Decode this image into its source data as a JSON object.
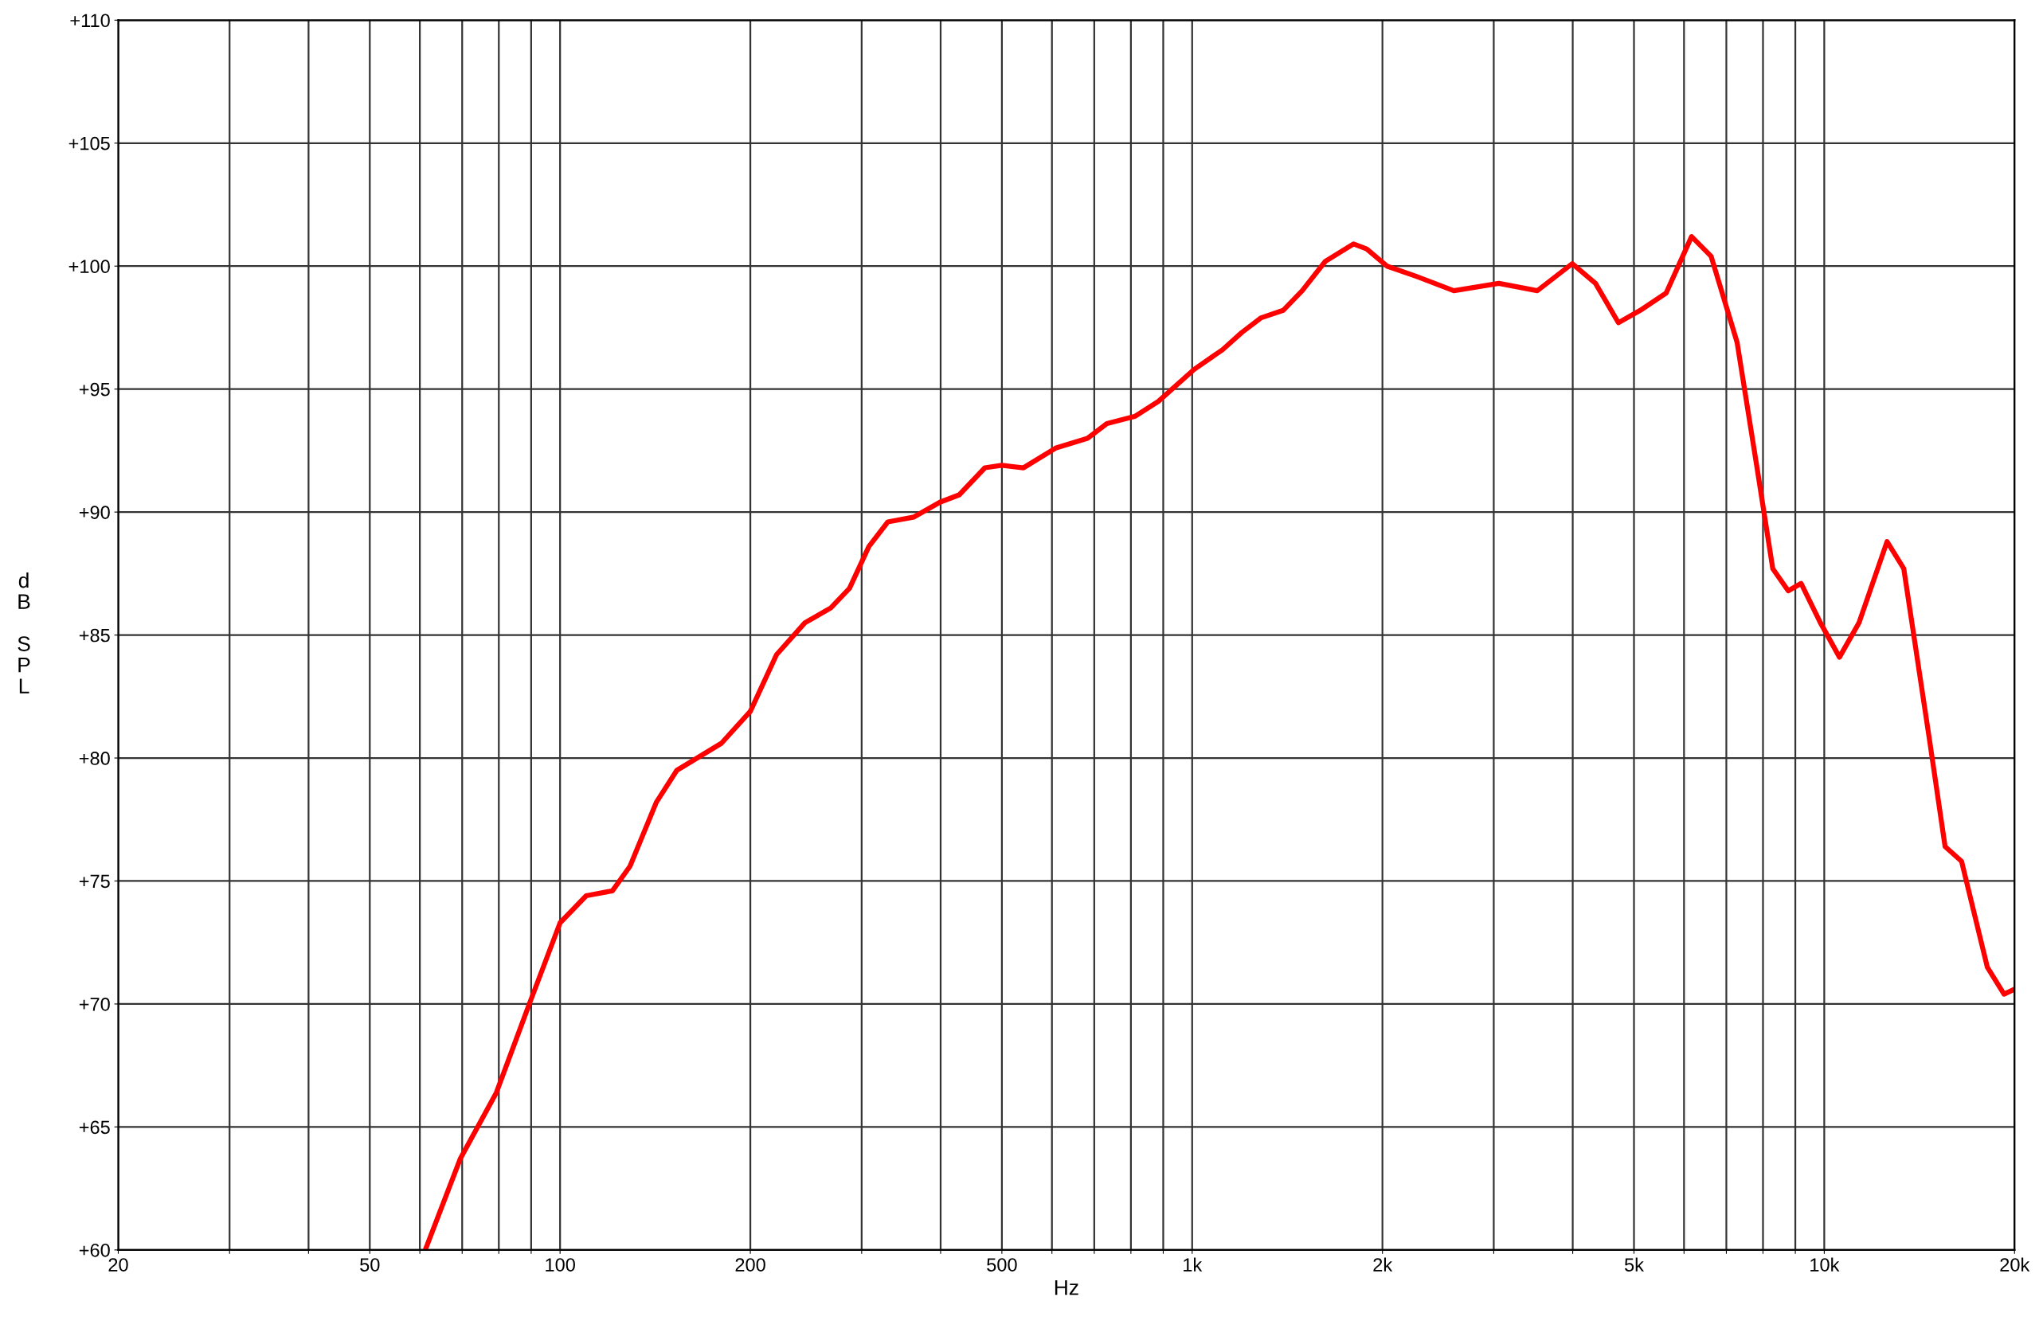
{
  "chart_data": {
    "type": "line",
    "xlabel": "Hz",
    "ylabel": "dB SPL",
    "log": "x",
    "grid": true,
    "legend": false,
    "marker": "none",
    "line_style": "solid",
    "xlim": [
      20,
      20000
    ],
    "ylim": [
      60,
      110
    ],
    "xticks": [
      20,
      {
        "value": 30,
        "label": null
      },
      {
        "value": 40,
        "label": null
      },
      50,
      {
        "value": 60,
        "label": null
      },
      {
        "value": 70,
        "label": null
      },
      {
        "value": 80,
        "label": null
      },
      {
        "value": 90,
        "label": null
      },
      100,
      200,
      {
        "value": 300,
        "label": null
      },
      {
        "value": 400,
        "label": null
      },
      500,
      {
        "value": 600,
        "label": null
      },
      {
        "value": 700,
        "label": null
      },
      {
        "value": 800,
        "label": null
      },
      {
        "value": 900,
        "label": null
      },
      {
        "value": 1000,
        "label": "1k"
      },
      {
        "value": 2000,
        "label": "2k"
      },
      {
        "value": 3000,
        "label": null
      },
      {
        "value": 4000,
        "label": null
      },
      {
        "value": 5000,
        "label": "5k"
      },
      {
        "value": 6000,
        "label": null
      },
      {
        "value": 7000,
        "label": null
      },
      {
        "value": 8000,
        "label": null
      },
      {
        "value": 9000,
        "label": null
      },
      {
        "value": 10000,
        "label": "10k"
      },
      {
        "value": 20000,
        "label": "20k"
      }
    ],
    "yticks": [
      {
        "value": 60,
        "label": "+60"
      },
      {
        "value": 65,
        "label": "+65"
      },
      {
        "value": 70,
        "label": "+70"
      },
      {
        "value": 75,
        "label": "+75"
      },
      {
        "value": 80,
        "label": "+80"
      },
      {
        "value": 85,
        "label": "+85"
      },
      {
        "value": 90,
        "label": "+90"
      },
      {
        "value": 95,
        "label": "+95"
      },
      {
        "value": 100,
        "label": "+100"
      },
      {
        "value": 105,
        "label": "+105"
      },
      {
        "value": 110,
        "label": "+110"
      }
    ],
    "series": [
      {
        "color": "#ff0000",
        "x": [
          61.2,
          69.5,
          79.3,
          89.1,
          100,
          110,
          121,
          129,
          142,
          153,
          180,
          200,
          220,
          244,
          268,
          287,
          308,
          330,
          363,
          399,
          428,
          470,
          500,
          541,
          608,
          683,
          733,
          813,
          884,
          1007,
          1117,
          1198,
          1286,
          1393,
          1493,
          1625,
          1800,
          1888,
          2033,
          2254,
          2594,
          3056,
          3516,
          3993,
          4346,
          4724,
          5115,
          5620,
          6167,
          6622,
          7280,
          7806,
          8290,
          8770,
          9190,
          9860,
          10570,
          11350,
          12570,
          13360,
          14680,
          15530,
          16490,
          18110,
          19250,
          20000
        ],
        "values": [
          60.0,
          63.7,
          66.4,
          69.9,
          73.3,
          74.4,
          74.6,
          75.6,
          78.2,
          79.5,
          80.6,
          81.9,
          84.2,
          85.5,
          86.1,
          86.9,
          88.6,
          89.6,
          89.8,
          90.4,
          90.7,
          91.8,
          91.9,
          91.8,
          92.6,
          93.0,
          93.6,
          93.9,
          94.5,
          95.8,
          96.6,
          97.3,
          97.9,
          98.2,
          99.0,
          100.2,
          100.9,
          100.7,
          100.0,
          99.6,
          99.0,
          99.3,
          99.0,
          100.1,
          99.3,
          97.7,
          98.2,
          98.9,
          101.2,
          100.4,
          96.9,
          92.0,
          87.7,
          86.8,
          87.1,
          85.5,
          84.1,
          85.5,
          88.8,
          87.7,
          80.7,
          76.4,
          75.8,
          71.5,
          70.4,
          70.6
        ]
      }
    ]
  }
}
